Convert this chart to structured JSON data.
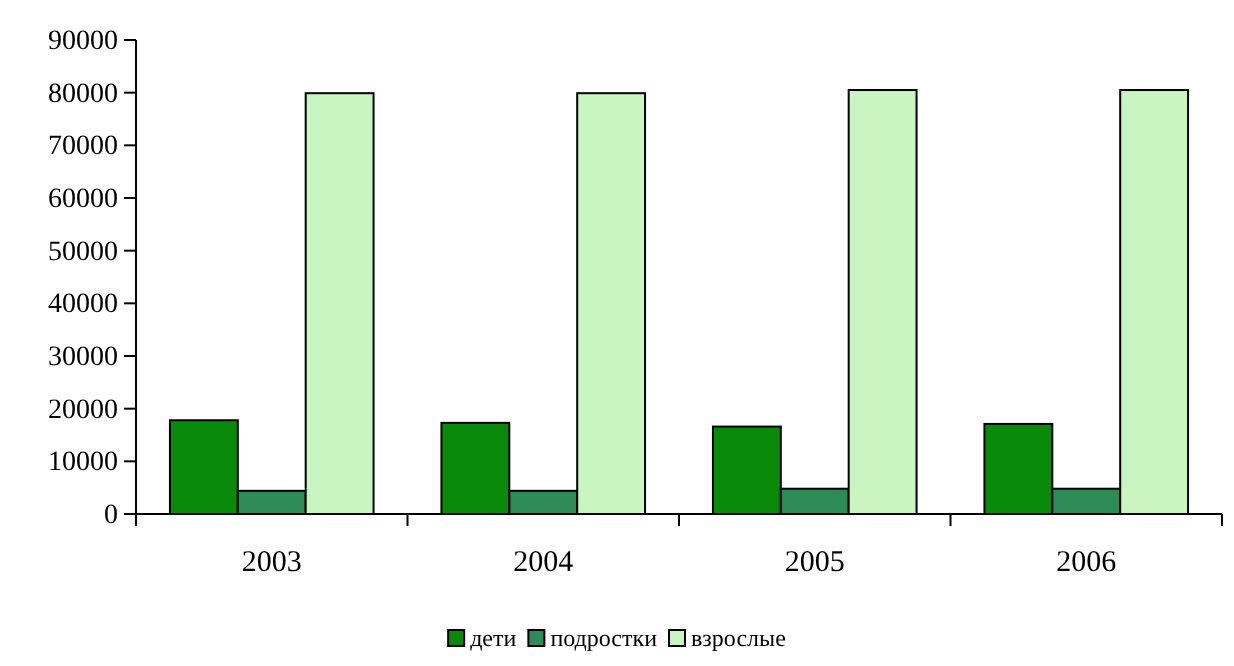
{
  "chart_data": {
    "type": "bar",
    "categories": [
      "2003",
      "2004",
      "2005",
      "2006"
    ],
    "series": [
      {
        "name": "дети",
        "color": "#0a8a0a",
        "values": [
          17800,
          17300,
          16600,
          17100
        ]
      },
      {
        "name": "подростки",
        "color": "#2e8b57",
        "values": [
          4400,
          4400,
          4800,
          4800
        ]
      },
      {
        "name": "взрослые",
        "color": "#c8f5c0",
        "values": [
          79900,
          79900,
          80500,
          80500
        ]
      }
    ],
    "ylim": [
      0,
      90000
    ],
    "yticks": [
      0,
      10000,
      20000,
      30000,
      40000,
      50000,
      60000,
      70000,
      80000,
      90000
    ],
    "grid": false,
    "legend": "bottom"
  }
}
